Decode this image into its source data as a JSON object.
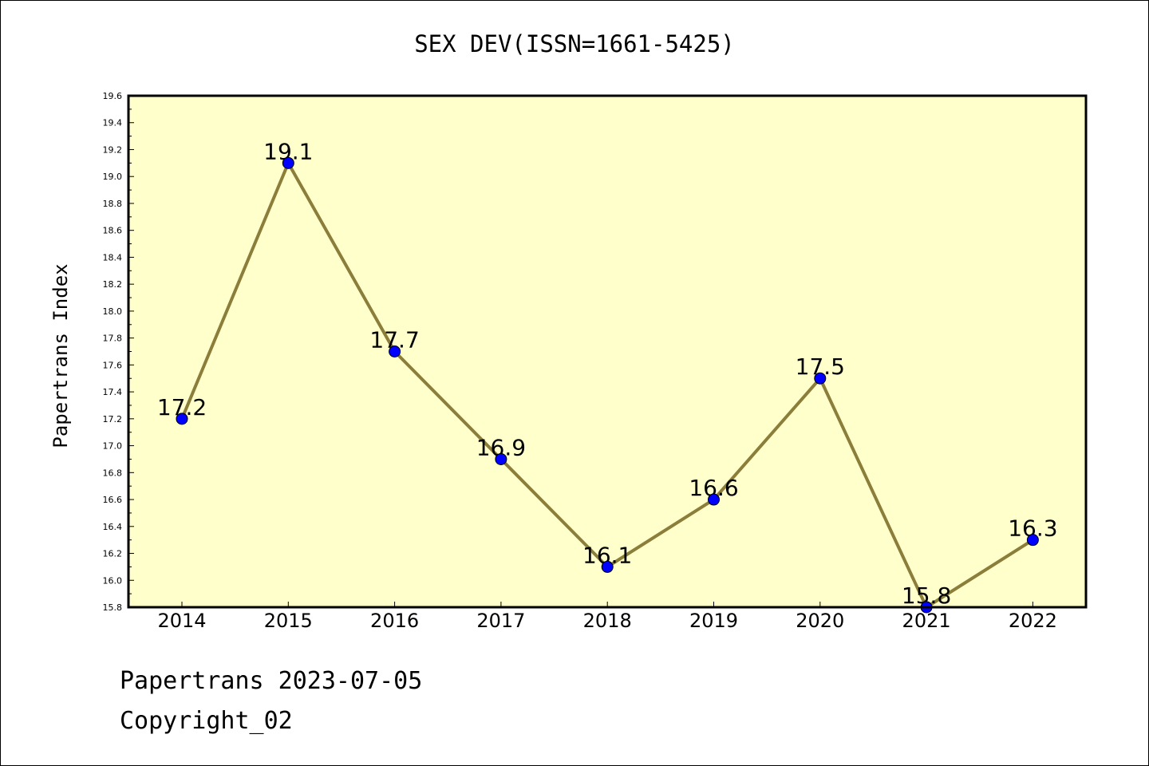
{
  "chart_data": {
    "type": "line",
    "title": "SEX DEV(ISSN=1661-5425)",
    "xlabel": "",
    "ylabel": "Papertrans Index",
    "categories": [
      "2014",
      "2015",
      "2016",
      "2017",
      "2018",
      "2019",
      "2020",
      "2021",
      "2022"
    ],
    "series": [
      {
        "values": [
          17.2,
          19.1,
          17.7,
          16.9,
          16.1,
          16.6,
          17.5,
          15.8,
          16.3
        ]
      }
    ],
    "data_labels": [
      "17.2",
      "19.1",
      "17.7",
      "16.9",
      "16.1",
      "16.6",
      "17.5",
      "15.8",
      "16.3"
    ],
    "ylim": [
      15.8,
      19.6
    ],
    "yticks": [
      "15.8",
      "16.0",
      "16.2",
      "16.4",
      "16.6",
      "16.8",
      "17.0",
      "17.2",
      "17.4",
      "17.6",
      "17.8",
      "18.0",
      "18.2",
      "18.4",
      "18.6",
      "18.8",
      "19.0",
      "19.2",
      "19.4",
      "19.6"
    ],
    "grid": false,
    "legend": "none",
    "colors": {
      "plot_background": "#ffffcc",
      "line": "#8b7d3a",
      "marker": "#0000ff",
      "axis": "#000000"
    }
  },
  "footer": {
    "date_line": "Papertrans 2023-07-05",
    "copyright_line": "Copyright_02"
  }
}
